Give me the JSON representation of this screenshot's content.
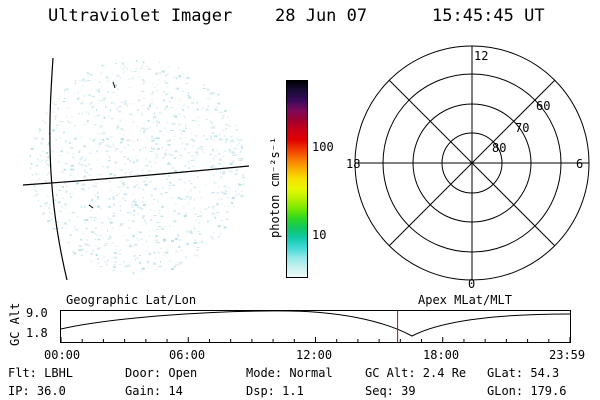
{
  "header": {
    "instrument": "Ultraviolet Imager",
    "date": "28 Jun 07",
    "time": "15:45:45 UT"
  },
  "colorbar": {
    "label": "photon cm⁻²s⁻¹",
    "ticks": [
      "100",
      "10"
    ],
    "colors": [
      "#000000",
      "#1a0a3a",
      "#3a0a5a",
      "#7a0a5a",
      "#a00030",
      "#c80018",
      "#e00000",
      "#f03a00",
      "#f87800",
      "#f8b000",
      "#f8e000",
      "#e8f800",
      "#b8f000",
      "#78e800",
      "#30d820",
      "#10c860",
      "#10c8a8",
      "#40d8d8",
      "#90e8e8",
      "#c8f0f0",
      "#f0f8f8"
    ]
  },
  "polar": {
    "mlt_labels": {
      "top": "12",
      "left": "18",
      "right": "6",
      "bottom": "0"
    },
    "lat_labels": [
      "60",
      "70",
      "80"
    ]
  },
  "timeline": {
    "axis_label": "GC Alt",
    "y_ticks": [
      "9.0",
      "1.8"
    ],
    "left_title": "Geographic Lat/Lon",
    "right_title": "Apex MLat/MLT",
    "x_ticks": [
      "00:00",
      "06:00",
      "12:00",
      "18:00",
      "23:59"
    ],
    "current_time_fraction": 0.66
  },
  "info": {
    "flt": "Flt: LBHL",
    "ip": "IP: 36.0",
    "door": "Door: Open",
    "gain": "Gain: 14",
    "mode": "Mode: Normal",
    "dsp": "Dsp:   1.1",
    "gc_alt": "GC Alt: 2.4 Re",
    "seq": "Seq: 39",
    "glat": "GLat:  54.3",
    "glon": "GLon: 179.6"
  }
}
